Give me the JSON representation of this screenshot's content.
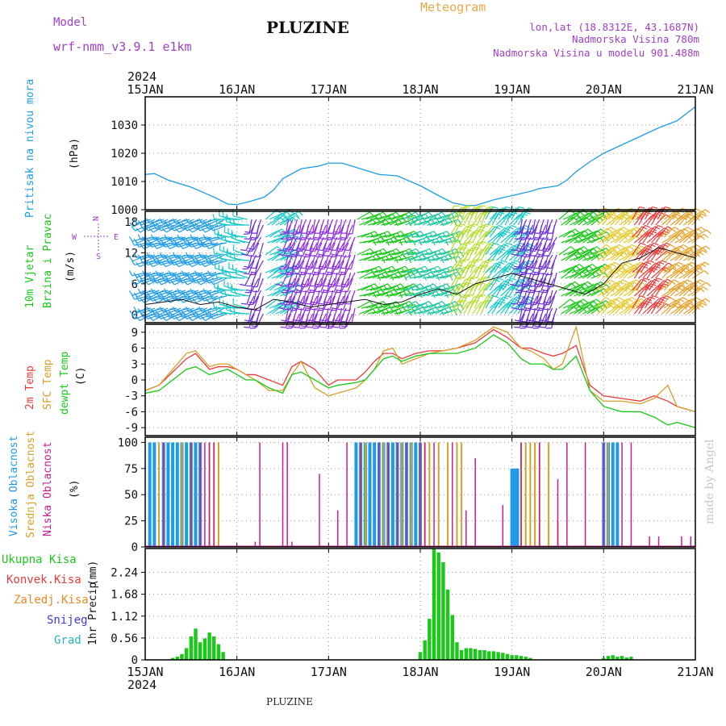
{
  "header": {
    "model_label": "Model",
    "model_name": "wrf-nmm_v3.9.1 e1km",
    "station": "PLUZINE",
    "product": "Meteogram",
    "lonlat": "lon,lat (18.8312E, 43.1687N)",
    "elevation": "Nadmorska Visina 780m",
    "model_elevation": "Nadmorska Visina u modelu 901.488m",
    "footer_station": "PLUZINE",
    "watermark": "made by Angel"
  },
  "colors": {
    "pressure": "#1e9be6",
    "temp2m": "#e83c3c",
    "sfctemp": "#d4a02a",
    "dewpt": "#19c819",
    "high": "#1e9be6",
    "mid": "#d4a02a",
    "low": "#c81e8c",
    "precip_total": "#19c819",
    "wind_title": "#19c819",
    "wind_axis_label": "#a040c8",
    "header_purple": "#a040c8",
    "header_orange": "#e8a848"
  },
  "chart_data": [
    {
      "id": "pressure",
      "type": "line",
      "ylabel_main": "Pritisak na nivou mora",
      "ylabel_unit": "(hPa)",
      "x_tick_labels": [
        "15JAN",
        "16JAN",
        "17JAN",
        "18JAN",
        "19JAN",
        "20JAN",
        "21JAN"
      ],
      "year_label": "2024",
      "ylim": [
        1000,
        1040
      ],
      "yticks": [
        1000,
        1010,
        1020,
        1030
      ],
      "x": [
        0,
        0.1,
        0.25,
        0.5,
        0.75,
        0.9,
        1.0,
        1.15,
        1.3,
        1.4,
        1.5,
        1.7,
        1.9,
        2.0,
        2.15,
        2.3,
        2.45,
        2.55,
        2.75,
        3.0,
        3.2,
        3.35,
        3.5,
        3.6,
        3.8,
        4.0,
        4.2,
        4.3,
        4.5,
        4.6,
        4.7,
        4.85,
        5.0,
        5.2,
        5.4,
        5.6,
        5.8,
        6.0
      ],
      "values": [
        1012.5,
        1012.8,
        1010.5,
        1008,
        1004.5,
        1002,
        1001.8,
        1003,
        1004.5,
        1007,
        1011,
        1014.5,
        1015.5,
        1016.5,
        1016.5,
        1015,
        1013.5,
        1012.5,
        1012,
        1008.5,
        1005,
        1002.5,
        1001.5,
        1001.5,
        1003.5,
        1005,
        1006.5,
        1007.5,
        1008.5,
        1010.5,
        1013.5,
        1017,
        1020,
        1023,
        1026,
        1029,
        1031.5,
        1036.5
      ]
    },
    {
      "id": "wind",
      "type": "line",
      "ylabel_main": "10m Vjetar",
      "ylabel_sub": "Brzina i Pravac",
      "ylabel_unit": "(m/s)",
      "compass": [
        "N",
        "E",
        "S",
        "W"
      ],
      "ylim": [
        -1.5,
        20
      ],
      "yticks": [
        0,
        6,
        12,
        18
      ],
      "x": [
        0,
        0.2,
        0.4,
        0.6,
        0.8,
        1.0,
        1.2,
        1.4,
        1.6,
        1.8,
        2.0,
        2.2,
        2.4,
        2.6,
        2.8,
        3.0,
        3.2,
        3.4,
        3.6,
        3.8,
        4.0,
        4.2,
        4.4,
        4.6,
        4.8,
        5.0,
        5.2,
        5.4,
        5.6,
        5.8,
        6.0
      ],
      "series": [
        {
          "name": "",
          "values": [
            2,
            2.5,
            3,
            2,
            2.5,
            1.5,
            1,
            3,
            2.5,
            1.5,
            2,
            2.5,
            3,
            2,
            2.5,
            4,
            5,
            4,
            6,
            7,
            8,
            7,
            6,
            5,
            4,
            6,
            10,
            11,
            13,
            12,
            11
          ]
        }
      ],
      "barbs": [
        {
          "start": 0.0,
          "end": 0.9,
          "dir": 250,
          "speed": 9,
          "color": "#1e9be6"
        },
        {
          "start": 0.9,
          "end": 1.15,
          "dir": 280,
          "speed": 5,
          "color": "#19c8c8"
        },
        {
          "start": 1.15,
          "end": 1.3,
          "dir": 200,
          "speed": 18,
          "color": "#6a2cd8"
        },
        {
          "start": 1.3,
          "end": 1.55,
          "dir": 60,
          "speed": 7,
          "color": "#19c8c8"
        },
        {
          "start": 1.55,
          "end": 2.3,
          "dir": 200,
          "speed": 14,
          "color": "#8a2be2"
        },
        {
          "start": 2.3,
          "end": 2.8,
          "dir": 70,
          "speed": 14,
          "color": "#19c819"
        },
        {
          "start": 2.8,
          "end": 3.3,
          "dir": 70,
          "speed": 12,
          "color": "#1ec8a0"
        },
        {
          "start": 3.3,
          "end": 3.7,
          "dir": 30,
          "speed": 12,
          "color": "#b4dc28"
        },
        {
          "start": 3.7,
          "end": 4.1,
          "dir": 40,
          "speed": 10,
          "color": "#19c8c8"
        },
        {
          "start": 4.1,
          "end": 4.5,
          "dir": 200,
          "speed": 12,
          "color": "#6a2cd8"
        },
        {
          "start": 4.5,
          "end": 4.9,
          "dir": 60,
          "speed": 16,
          "color": "#19c819"
        },
        {
          "start": 4.9,
          "end": 5.3,
          "dir": 50,
          "speed": 16,
          "color": "#e6c828"
        },
        {
          "start": 5.3,
          "end": 5.6,
          "dir": 40,
          "speed": 18,
          "color": "#e83c3c"
        },
        {
          "start": 5.6,
          "end": 6.0,
          "dir": 50,
          "speed": 16,
          "color": "#e6a028"
        }
      ]
    },
    {
      "id": "temperature",
      "type": "line",
      "ylabels": [
        "2m Temp",
        "SFC Temp",
        "dewpt Temp"
      ],
      "ylabel_unit": "(C)",
      "ylim": [
        -10.5,
        10.5
      ],
      "yticks": [
        -9,
        -6,
        -3,
        0,
        3,
        6,
        9
      ],
      "x": [
        0,
        0.15,
        0.3,
        0.45,
        0.55,
        0.7,
        0.8,
        0.9,
        1.0,
        1.1,
        1.2,
        1.35,
        1.5,
        1.6,
        1.7,
        1.85,
        2.0,
        2.1,
        2.3,
        2.4,
        2.5,
        2.6,
        2.7,
        2.8,
        2.95,
        3.1,
        3.25,
        3.4,
        3.6,
        3.8,
        3.95,
        4.1,
        4.2,
        4.35,
        4.45,
        4.55,
        4.7,
        4.85,
        5.0,
        5.2,
        5.4,
        5.55,
        5.7,
        5.8,
        6.0
      ],
      "series": [
        {
          "name": "2m Temp",
          "values": [
            -2,
            -1,
            1.5,
            4,
            5,
            2,
            2.5,
            2.5,
            2,
            1,
            1,
            0,
            -1,
            2.5,
            3.5,
            2,
            -1,
            0,
            0,
            1.5,
            3.5,
            5,
            5,
            4,
            5,
            5.5,
            5.5,
            6,
            7,
            9.5,
            8,
            6,
            6,
            5,
            4.5,
            5,
            6.5,
            -1,
            -3,
            -3.5,
            -4,
            -3,
            -4,
            -5,
            -6
          ]
        },
        {
          "name": "SFC Temp",
          "values": [
            -2,
            -1,
            2,
            5,
            5.5,
            2.5,
            3,
            3,
            2,
            1,
            0,
            -2,
            -2,
            1,
            3.5,
            -1.5,
            -3,
            -2.5,
            -1.5,
            0,
            2,
            5.5,
            6,
            3,
            4,
            5,
            5.5,
            6,
            7.5,
            10,
            9,
            6,
            5.5,
            4,
            2,
            3,
            10,
            -2,
            -4,
            -4,
            -4.5,
            -3.5,
            -1,
            -5,
            -6
          ]
        },
        {
          "name": "dewpt Temp",
          "values": [
            -2.5,
            -2,
            0,
            2,
            2.5,
            1,
            1.5,
            2,
            1,
            0,
            0,
            -1.5,
            -2.5,
            1,
            1.5,
            0,
            -1.5,
            -1,
            -0.5,
            0,
            2,
            4,
            4.5,
            3.5,
            4.5,
            5,
            5,
            5,
            6,
            8.5,
            7,
            4,
            3,
            3,
            2,
            2,
            4.5,
            -2,
            -5,
            -6,
            -6,
            -7,
            -8.5,
            -8,
            -9
          ]
        }
      ]
    },
    {
      "id": "cloud",
      "type": "bar",
      "ylabels": [
        "Visoka Oblacnost",
        "Srednja Oblacnost",
        "Niska Oblacnost"
      ],
      "ylabel_unit": "(%)",
      "ylim": [
        0,
        105
      ],
      "yticks": [
        0,
        25,
        50,
        75,
        100
      ],
      "series": [
        {
          "name": "Visoka Oblacnost",
          "x": [
            0.05,
            0.1,
            0.2,
            0.25,
            0.3,
            0.35,
            0.4,
            0.45,
            0.5,
            0.55,
            0.6,
            2.3,
            2.35,
            2.4,
            2.45,
            2.5,
            2.55,
            2.6,
            2.65,
            2.7,
            2.75,
            2.8,
            2.85,
            2.9,
            2.95,
            3.0,
            4.0,
            4.02,
            4.04,
            4.06,
            5.0,
            5.05,
            5.1,
            5.15
          ],
          "values": [
            100,
            100,
            100,
            100,
            100,
            100,
            100,
            100,
            100,
            100,
            100,
            100,
            100,
            100,
            100,
            100,
            100,
            100,
            100,
            100,
            100,
            100,
            100,
            100,
            100,
            100,
            75,
            75,
            75,
            75,
            100,
            100,
            100,
            100
          ]
        },
        {
          "name": "Srednja Oblacnost",
          "x": [
            0.15,
            0.4,
            0.7,
            0.75,
            0.8,
            2.4,
            2.6,
            2.8,
            2.9,
            3.05,
            3.1,
            3.2,
            3.3,
            3.4,
            3.45,
            4.1,
            4.15,
            4.2,
            4.25,
            4.3,
            4.4,
            4.5,
            5.05
          ],
          "values": [
            100,
            100,
            100,
            100,
            100,
            100,
            100,
            100,
            100,
            100,
            100,
            100,
            100,
            100,
            100,
            100,
            100,
            100,
            100,
            100,
            100,
            25,
            100
          ]
        },
        {
          "name": "Niska Oblacnost",
          "x": [
            0.2,
            0.5,
            0.6,
            0.65,
            0.7,
            0.75,
            1.2,
            1.25,
            1.5,
            1.55,
            1.6,
            1.9,
            2.1,
            2.2,
            2.35,
            2.55,
            2.65,
            2.75,
            2.85,
            3.0,
            3.05,
            3.15,
            3.35,
            3.5,
            3.6,
            3.9,
            4.1,
            4.3,
            4.5,
            4.6,
            4.8,
            5.0,
            5.2,
            5.3,
            5.5,
            5.6,
            5.85,
            5.95
          ],
          "values": [
            100,
            100,
            100,
            100,
            100,
            100,
            5,
            100,
            100,
            100,
            5,
            70,
            35,
            100,
            100,
            100,
            100,
            100,
            100,
            100,
            100,
            100,
            100,
            35,
            85,
            40,
            100,
            100,
            65,
            100,
            100,
            100,
            100,
            100,
            10,
            10,
            10,
            10
          ]
        }
      ]
    },
    {
      "id": "precip",
      "type": "bar",
      "legend": [
        "Ukupna Kisa",
        "Konvek.Kisa",
        "Zaledj.Kisa",
        "Snijeg",
        "Grad"
      ],
      "legend_colors": [
        "#19c819",
        "#e83c3c",
        "#e68c28",
        "#3c3cd8",
        "#28b4b4"
      ],
      "ylabel_main": "1hr Precip",
      "ylabel_unit": "(mm)",
      "x_tick_labels": [
        "15JAN",
        "16JAN",
        "17JAN",
        "18JAN",
        "19JAN",
        "20JAN",
        "21JAN"
      ],
      "year_label": "2024",
      "ylim": [
        0,
        2.85
      ],
      "yticks": [
        0,
        0.56,
        1.12,
        1.68,
        2.24
      ],
      "series": [
        {
          "name": "Ukupna Kisa",
          "x": [
            0.3,
            0.35,
            0.4,
            0.45,
            0.5,
            0.55,
            0.6,
            0.65,
            0.7,
            0.75,
            0.8,
            0.85,
            3.0,
            3.05,
            3.1,
            3.15,
            3.2,
            3.25,
            3.3,
            3.35,
            3.4,
            3.45,
            3.5,
            3.55,
            3.6,
            3.65,
            3.7,
            3.75,
            3.8,
            3.85,
            3.9,
            3.95,
            4.0,
            4.05,
            4.1,
            4.15,
            4.2,
            5.0,
            5.05,
            5.1,
            5.15,
            5.2,
            5.25,
            5.3
          ],
          "values": [
            0.05,
            0.08,
            0.15,
            0.3,
            0.6,
            0.8,
            0.45,
            0.55,
            0.7,
            0.6,
            0.4,
            0.2,
            0.2,
            0.5,
            1.05,
            2.85,
            2.75,
            2.5,
            1.8,
            1.15,
            0.45,
            0.25,
            0.3,
            0.3,
            0.28,
            0.25,
            0.25,
            0.22,
            0.22,
            0.2,
            0.18,
            0.15,
            0.12,
            0.12,
            0.1,
            0.08,
            0.05,
            0.05,
            0.1,
            0.12,
            0.08,
            0.1,
            0.06,
            0.08
          ]
        }
      ]
    }
  ]
}
